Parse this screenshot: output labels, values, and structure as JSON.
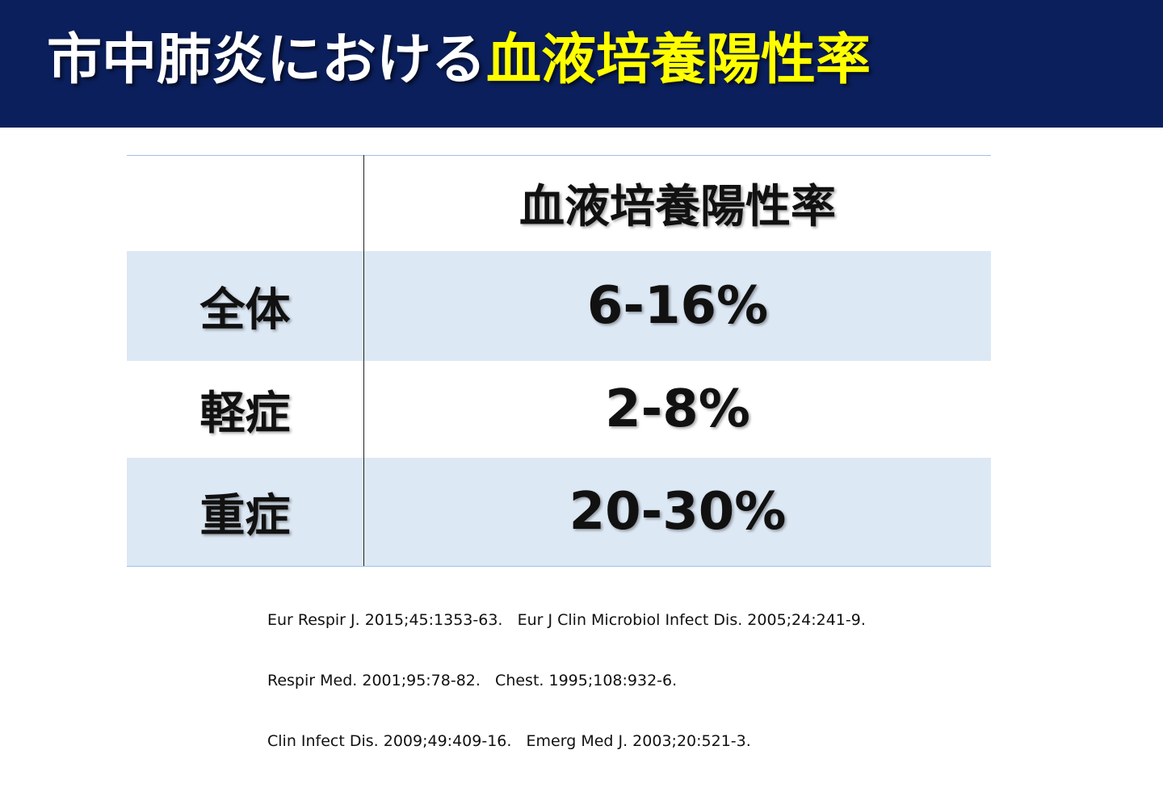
{
  "header": {
    "title": [
      "市中肺炎における",
      "血液培養陽性率"
    ]
  },
  "table": {
    "header": [
      "血液培養陽性率"
    ],
    "rows": [
      [
        "全体",
        "6-16%"
      ],
      [
        "軽症",
        "2-8%"
      ],
      [
        "重症",
        "20-30%"
      ]
    ]
  },
  "references": [
    "Eur Respir J. 2015;45:1353-63.   Eur J Clin Microbiol Infect Dis. 2005;24:241-9.",
    "Respir Med. 2001;95:78-82.   Chest. 1995;108:932-6.",
    "Clin Infect Dis. 2009;49:409-16.   Emerg Med J. 2003;20:521-3."
  ]
}
